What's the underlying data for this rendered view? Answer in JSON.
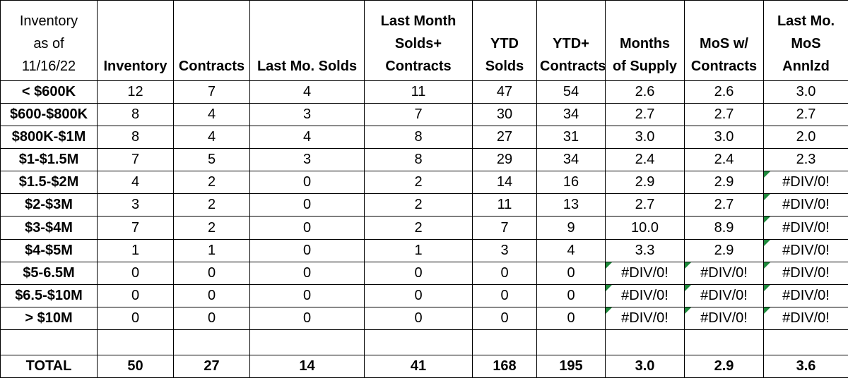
{
  "header": {
    "col0_lines": [
      "Inventory",
      "as of",
      "11/16/22"
    ],
    "columns": [
      [
        "Inventory"
      ],
      [
        "Contracts"
      ],
      [
        "Last Mo. Solds"
      ],
      [
        "Last Month",
        "Solds+",
        "Contracts"
      ],
      [
        "YTD",
        "Solds"
      ],
      [
        "YTD+",
        "Contracts"
      ],
      [
        "Months",
        "of Supply"
      ],
      [
        "MoS w/",
        "Contracts"
      ],
      [
        "Last Mo.",
        "MoS",
        "Annlzd"
      ]
    ]
  },
  "rows": [
    {
      "label": "< $600K",
      "values": [
        "12",
        "7",
        "4",
        "11",
        "47",
        "54",
        "2.6",
        "2.6",
        "3.0"
      ]
    },
    {
      "label": "$600-$800K",
      "values": [
        "8",
        "4",
        "3",
        "7",
        "30",
        "34",
        "2.7",
        "2.7",
        "2.7"
      ]
    },
    {
      "label": "$800K-$1M",
      "values": [
        "8",
        "4",
        "4",
        "8",
        "27",
        "31",
        "3.0",
        "3.0",
        "2.0"
      ]
    },
    {
      "label": "$1-$1.5M",
      "values": [
        "7",
        "5",
        "3",
        "8",
        "29",
        "34",
        "2.4",
        "2.4",
        "2.3"
      ]
    },
    {
      "label": "$1.5-$2M",
      "values": [
        "4",
        "2",
        "0",
        "2",
        "14",
        "16",
        "2.9",
        "2.9",
        "#DIV/0!"
      ]
    },
    {
      "label": "$2-$3M",
      "values": [
        "3",
        "2",
        "0",
        "2",
        "11",
        "13",
        "2.7",
        "2.7",
        "#DIV/0!"
      ]
    },
    {
      "label": "$3-$4M",
      "values": [
        "7",
        "2",
        "0",
        "2",
        "7",
        "9",
        "10.0",
        "8.9",
        "#DIV/0!"
      ]
    },
    {
      "label": "$4-$5M",
      "values": [
        "1",
        "1",
        "0",
        "1",
        "3",
        "4",
        "3.3",
        "2.9",
        "#DIV/0!"
      ]
    },
    {
      "label": "$5-6.5M",
      "values": [
        "0",
        "0",
        "0",
        "0",
        "0",
        "0",
        "#DIV/0!",
        "#DIV/0!",
        "#DIV/0!"
      ]
    },
    {
      "label": "$6.5-$10M",
      "values": [
        "0",
        "0",
        "0",
        "0",
        "0",
        "0",
        "#DIV/0!",
        "#DIV/0!",
        "#DIV/0!"
      ]
    },
    {
      "label": "> $10M",
      "values": [
        "0",
        "0",
        "0",
        "0",
        "0",
        "0",
        "#DIV/0!",
        "#DIV/0!",
        "#DIV/0!"
      ]
    }
  ],
  "total": {
    "label": "TOTAL",
    "values": [
      "50",
      "27",
      "14",
      "41",
      "168",
      "195",
      "3.0",
      "2.9",
      "3.6"
    ]
  },
  "colors": {
    "error_flag": "#1e8a3c"
  }
}
